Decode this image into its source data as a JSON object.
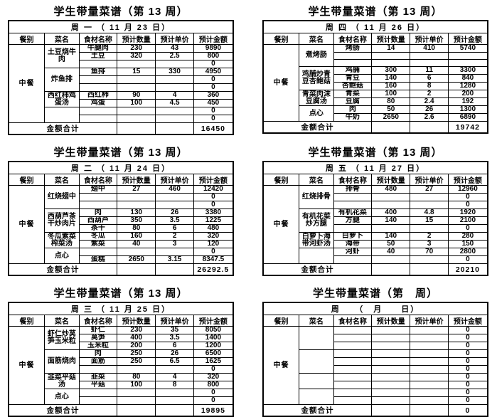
{
  "page": {
    "background": "#ffffff",
    "text_color": "#000000",
    "border_color": "#000000"
  },
  "shared": {
    "headers": [
      "餐别",
      "菜名",
      "食材名称",
      "预计数量",
      "预计单价",
      "预计金额"
    ],
    "meal_label": "中餐",
    "total_label": "金额合计"
  },
  "tables": [
    {
      "id": "monday",
      "title": "学生带量菜谱（第 13 周）",
      "date_line": "周 一 （ 11 月 23 日）",
      "groups": [
        {
          "dish": "土豆烧牛肉",
          "rows": [
            [
              "牛腿肉",
              "230",
              "43",
              "9890"
            ],
            [
              "土豆",
              "320",
              "2.5",
              "800"
            ],
            [
              "",
              "",
              "",
              "0"
            ]
          ]
        },
        {
          "dish": "炸鱼排",
          "rows": [
            [
              "鱼排",
              "15",
              "330",
              "4950"
            ],
            [
              "",
              "",
              "",
              "0"
            ],
            [
              "",
              "",
              "",
              "0"
            ]
          ]
        },
        {
          "dish": "西红柿鸡蛋汤",
          "rows": [
            [
              "西红柿",
              "90",
              "4",
              "360"
            ],
            [
              "鸡蛋",
              "100",
              "4.5",
              "450"
            ]
          ]
        },
        {
          "dish": "",
          "rows": [
            [
              "",
              "",
              "",
              "0"
            ],
            [
              "",
              "",
              "",
              "0"
            ]
          ]
        }
      ],
      "total": "16450"
    },
    {
      "id": "thursday",
      "title": "学生带量菜谱（第 13 周）",
      "date_line": "周 四 （ 11 月 26 日）",
      "groups": [
        {
          "dish": "煮烤肠",
          "rows": [
            [
              "烤肠",
              "14",
              "410",
              "5740"
            ],
            [
              "",
              "",
              "",
              ""
            ],
            [
              "",
              "",
              "",
              ""
            ]
          ]
        },
        {
          "dish": "鸡脯炒青豆杏鲍菇",
          "rows": [
            [
              "鸡脯",
              "300",
              "11",
              "3300"
            ],
            [
              "青豆",
              "140",
              "6",
              "840"
            ],
            [
              "杏鲍菇",
              "160",
              "8",
              "1280"
            ]
          ]
        },
        {
          "dish": "青菜肉沫豆腐汤",
          "rows": [
            [
              "青菜",
              "100",
              "2",
              "200"
            ],
            [
              "豆腐",
              "80",
              "2.4",
              "192"
            ]
          ]
        },
        {
          "dish": "点心",
          "rows": [
            [
              "肉",
              "50",
              "26",
              "1300"
            ],
            [
              "牛奶",
              "2650",
              "2.6",
              "6890"
            ]
          ]
        }
      ],
      "total": "19742"
    },
    {
      "id": "tuesday",
      "title": "学生带量菜谱（第 13 周）",
      "date_line": "周 二 （ 11 月 24 日）",
      "groups": [
        {
          "dish": "红烧翅中",
          "rows": [
            [
              "翅中",
              "27",
              "460",
              "12420"
            ],
            [
              "",
              "",
              "",
              "0"
            ],
            [
              "",
              "",
              "",
              "0"
            ]
          ]
        },
        {
          "dish": "西葫芦茶干炒肉片",
          "rows": [
            [
              "肉",
              "130",
              "26",
              "3380"
            ],
            [
              "西葫芦",
              "350",
              "3.5",
              "1225"
            ],
            [
              "茶干",
              "80",
              "6",
              "480"
            ]
          ]
        },
        {
          "dish": "冬瓜紫菜榨菜汤",
          "rows": [
            [
              "冬瓜",
              "160",
              "2",
              "320"
            ],
            [
              "紫菜",
              "40",
              "3",
              "120"
            ]
          ]
        },
        {
          "dish": "点心",
          "rows": [
            [
              "",
              "",
              "",
              "0"
            ],
            [
              "蛋糕",
              "2650",
              "3.15",
              "8347.5"
            ]
          ]
        }
      ],
      "total": "26292.5"
    },
    {
      "id": "friday",
      "title": "学生带量菜谱（第 13 周）",
      "date_line": "周 五 （ 11 月 27 日）",
      "groups": [
        {
          "dish": "红烧排骨",
          "rows": [
            [
              "排骨",
              "480",
              "27",
              "12960"
            ],
            [
              "",
              "",
              "",
              "0"
            ],
            [
              "",
              "",
              "",
              "0"
            ]
          ]
        },
        {
          "dish": "有机花菜炒方腿",
          "rows": [
            [
              "有机花菜",
              "400",
              "4.8",
              "1920"
            ],
            [
              "方腿",
              "140",
              "15",
              "2100"
            ],
            [
              "",
              "",
              "",
              "0"
            ]
          ]
        },
        {
          "dish": "白萝卜海带河虾汤",
          "rows": [
            [
              "白萝卜",
              "140",
              "2",
              "280"
            ],
            [
              "海带",
              "50",
              "3",
              "150"
            ]
          ]
        },
        {
          "dish": "",
          "rows": [
            [
              "河虾",
              "40",
              "70",
              "2800"
            ],
            [
              "",
              "",
              "",
              "0"
            ]
          ]
        }
      ],
      "total": "20210"
    },
    {
      "id": "wednesday",
      "title": "学生带量菜谱（第 13 周）",
      "date_line": "周 三 （ 11 月 25 日）",
      "groups": [
        {
          "dish": "虾仁炒莴笋玉米粒",
          "rows": [
            [
              "虾仁",
              "230",
              "35",
              "8050"
            ],
            [
              "莴笋",
              "400",
              "3.5",
              "1400"
            ],
            [
              "玉米粒",
              "200",
              "6",
              "1200"
            ]
          ]
        },
        {
          "dish": "面筋烧肉",
          "rows": [
            [
              "肉",
              "250",
              "26",
              "6500"
            ],
            [
              "面筋",
              "250",
              "6.5",
              "1625"
            ],
            [
              "",
              "",
              "",
              "0"
            ]
          ]
        },
        {
          "dish": "韭菜平菇汤",
          "rows": [
            [
              "韭菜",
              "80",
              "4",
              "320"
            ],
            [
              "平菇",
              "100",
              "8",
              "800"
            ]
          ]
        },
        {
          "dish": "点心",
          "rows": [
            [
              "",
              "",
              "",
              "0"
            ],
            [
              "",
              "",
              "",
              "0"
            ]
          ]
        }
      ],
      "total": "19895"
    },
    {
      "id": "blank-week",
      "title": "学生带量菜谱（第　周）",
      "date_line": "周　　（　月　　日）",
      "groups": [
        {
          "dish": "",
          "rows": [
            [
              "",
              "",
              "",
              "0"
            ],
            [
              "",
              "",
              "",
              "0"
            ],
            [
              "",
              "",
              "",
              "0"
            ]
          ]
        },
        {
          "dish": "",
          "rows": [
            [
              "",
              "",
              "",
              "0"
            ],
            [
              "",
              "",
              "",
              "0"
            ],
            [
              "",
              "",
              "",
              "0"
            ]
          ]
        },
        {
          "dish": "",
          "rows": [
            [
              "",
              "",
              "",
              "0"
            ],
            [
              "",
              "",
              "",
              "0"
            ]
          ]
        },
        {
          "dish": "",
          "rows": [
            [
              "",
              "",
              "",
              "0"
            ],
            [
              "",
              "",
              "",
              "0"
            ]
          ]
        }
      ],
      "total": "0"
    }
  ]
}
